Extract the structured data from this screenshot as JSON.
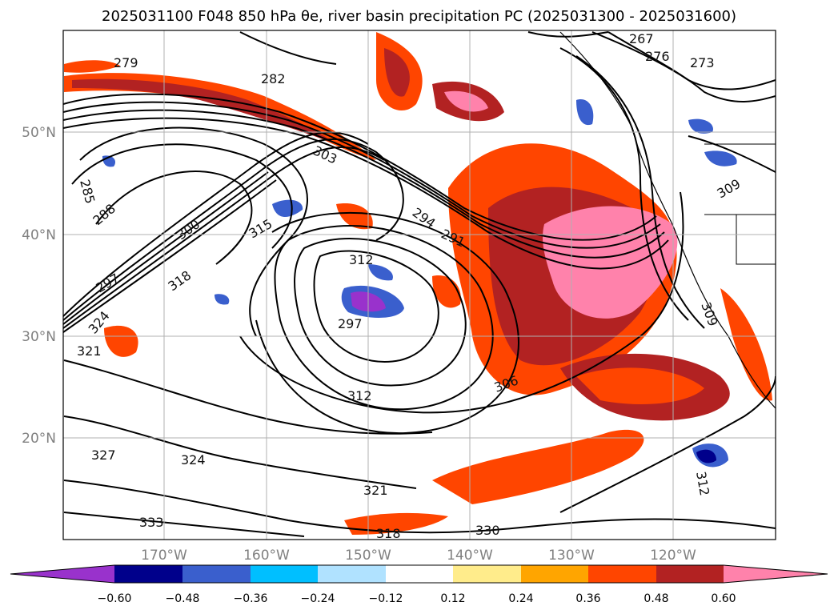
{
  "title": "2025031100 F048 850 hPa θe, river basin precipitation PC (2025031300 - 2025031600)",
  "lat_labels": [
    "50°N",
    "40°N",
    "30°N",
    "20°N"
  ],
  "lon_labels": [
    "170°W",
    "160°W",
    "150°W",
    "140°W",
    "130°W",
    "120°W"
  ],
  "colorbar": {
    "tick_labels": [
      "−0.60",
      "−0.48",
      "−0.36",
      "−0.24",
      "−0.12",
      "0.12",
      "0.24",
      "0.36",
      "0.48",
      "0.60"
    ],
    "colors": [
      "#9932cc",
      "#00008b",
      "#3a5fcd",
      "#00bfff",
      "#b0e2ff",
      "#ffffff",
      "#ffec8b",
      "#ffa500",
      "#ff4500",
      "#b22222",
      "#ff82ab",
      "#ff82ab"
    ]
  },
  "contour_labels": [
    "279",
    "285",
    "282",
    "288",
    "300",
    "297",
    "303",
    "315",
    "318",
    "324",
    "321",
    "312",
    "294",
    "291",
    "297",
    "306",
    "309",
    "312",
    "327",
    "324",
    "330",
    "333",
    "321",
    "318",
    "273",
    "267",
    "276",
    "309",
    "312"
  ]
}
